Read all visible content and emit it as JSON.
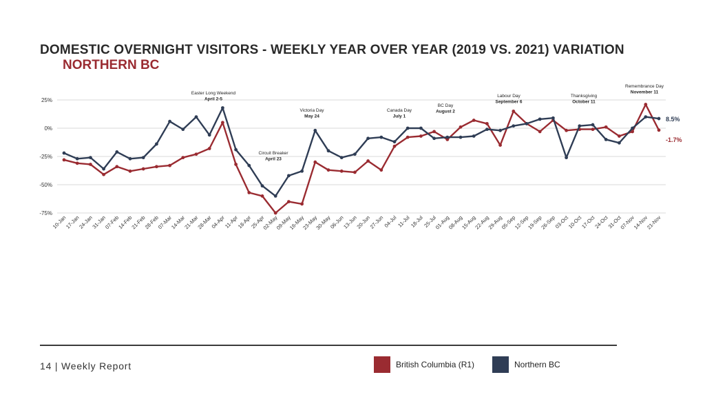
{
  "header": {
    "title": "DOMESTIC OVERNIGHT VISITORS - WEEKLY YEAR OVER YEAR (2019 VS. 2021) VARIATION",
    "subtitle": "NORTHERN BC"
  },
  "footer": {
    "page_label": "14 | Weekly Report"
  },
  "legend": [
    {
      "label": "British Columbia (R1)",
      "color": "#9a2b31"
    },
    {
      "label": "Northern BC",
      "color": "#2f3d55"
    }
  ],
  "chart_data": {
    "type": "line",
    "title": "DOMESTIC OVERNIGHT VISITORS - WEEKLY YEAR OVER YEAR (2019 VS. 2021) VARIATION",
    "subtitle": "NORTHERN BC",
    "xlabel": "",
    "ylabel": "",
    "ylim": [
      -75,
      25
    ],
    "yticks": [
      25,
      0,
      -25,
      -50,
      -75
    ],
    "ytick_labels": [
      "25%",
      "0%",
      "-25%",
      "-50%",
      "-75%"
    ],
    "grid": true,
    "legend_position": "bottom",
    "categories": [
      "10-Jan",
      "17-Jan",
      "24-Jan",
      "31-Jan",
      "07-Feb",
      "14-Feb",
      "21-Feb",
      "28-Feb",
      "07-Mar",
      "14-Mar",
      "21-Mar",
      "28-Mar",
      "04-Apr",
      "11-Apr",
      "18-Apr",
      "25-Apr",
      "02-May",
      "09-May",
      "16-May",
      "23-May",
      "30-May",
      "06-Jun",
      "13-Jun",
      "20-Jun",
      "27-Jun",
      "04-Jul",
      "11-Jul",
      "18-Jul",
      "25-Jul",
      "01-Aug",
      "08-Aug",
      "15-Aug",
      "22-Aug",
      "29-Aug",
      "05-Sep",
      "12-Sep",
      "19-Sep",
      "26-Sep",
      "03-Oct",
      "10-Oct",
      "17-Oct",
      "24-Oct",
      "31-Oct",
      "07-Nov",
      "14-Nov",
      "21-Nov"
    ],
    "series": [
      {
        "name": "British Columbia (R1)",
        "color": "#9a2b31",
        "end_label": "-1.7%",
        "values": [
          -28,
          -31,
          -32,
          -41,
          -34,
          -38,
          -36,
          -34,
          -33,
          -26,
          -23,
          -18,
          5,
          -32,
          -57,
          -60,
          -75,
          -65,
          -67,
          -30,
          -37,
          -38,
          -39,
          -29,
          -37,
          -16,
          -8,
          -7,
          -3,
          -10,
          1,
          7,
          4,
          -15,
          15,
          4,
          -3,
          7,
          -2,
          -1,
          -1,
          1,
          -7,
          -3,
          21,
          -1.7
        ]
      },
      {
        "name": "Northern BC",
        "color": "#2f3d55",
        "end_label": "8.5%",
        "values": [
          -22,
          -27,
          -26,
          -36,
          -21,
          -27,
          -26,
          -14,
          6,
          -1,
          10,
          -6,
          18,
          -19,
          -33,
          -51,
          -60,
          -42,
          -38,
          -2,
          -20,
          -26,
          -23,
          -9,
          -8,
          -12,
          0,
          0,
          -9,
          -8,
          -8,
          -7,
          -1,
          -2,
          2,
          4,
          8,
          9,
          -26,
          2,
          3,
          -10,
          -13,
          0,
          10,
          8.5
        ]
      }
    ],
    "annotations": [
      {
        "x": "04-Apr",
        "lines": [
          "Easter Long Weekend",
          "April 2-5"
        ]
      },
      {
        "x": "25-Apr",
        "lines": [
          "Circuit Breaker",
          "April 23"
        ]
      },
      {
        "x": "23-May",
        "lines": [
          "Victoria Day",
          "May 24"
        ]
      },
      {
        "x": "04-Jul",
        "lines": [
          "Canada Day",
          "July 1"
        ]
      },
      {
        "x": "01-Aug",
        "lines": [
          "BC Day",
          "August 2"
        ]
      },
      {
        "x": "05-Sep",
        "lines": [
          "Labour Day",
          "September 6"
        ]
      },
      {
        "x": "10-Oct",
        "lines": [
          "Thanksgiving",
          "October 11"
        ]
      },
      {
        "x": "14-Nov",
        "lines": [
          "Remembrance Day",
          "November 11"
        ]
      }
    ]
  }
}
